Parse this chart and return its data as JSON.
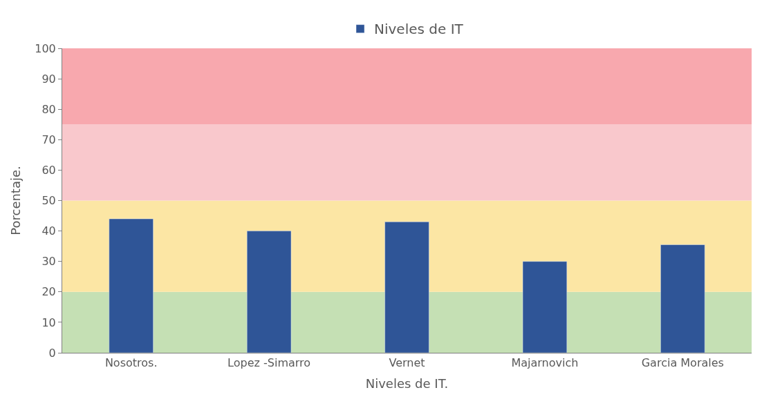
{
  "chart_data": {
    "type": "bar",
    "xlabel": "Niveles de IT.",
    "ylabel": "Porcentaje.",
    "categories": [
      "Nosotros.",
      "Lopez -Simarro",
      "Vernet",
      "Majarnovich",
      "Garcia Morales"
    ],
    "series": [
      {
        "name": "Niveles de IT",
        "color": "#2f5597",
        "values": [
          44,
          40,
          43,
          30,
          35.5
        ]
      }
    ],
    "ylim": [
      0,
      100
    ],
    "yticks": [
      0,
      10,
      20,
      30,
      40,
      50,
      60,
      70,
      80,
      90,
      100
    ],
    "grid": false,
    "legend": "top",
    "bands": [
      {
        "axis": "y",
        "from": 0,
        "to": 20,
        "color": "#c5e0b4"
      },
      {
        "axis": "y",
        "from": 20,
        "to": 50,
        "color": "#fce6a4"
      },
      {
        "axis": "y",
        "from": 50,
        "to": 75,
        "color": "#f9c8cc"
      },
      {
        "axis": "y",
        "from": 75,
        "to": 100,
        "color": "#f8a8ae"
      }
    ]
  }
}
